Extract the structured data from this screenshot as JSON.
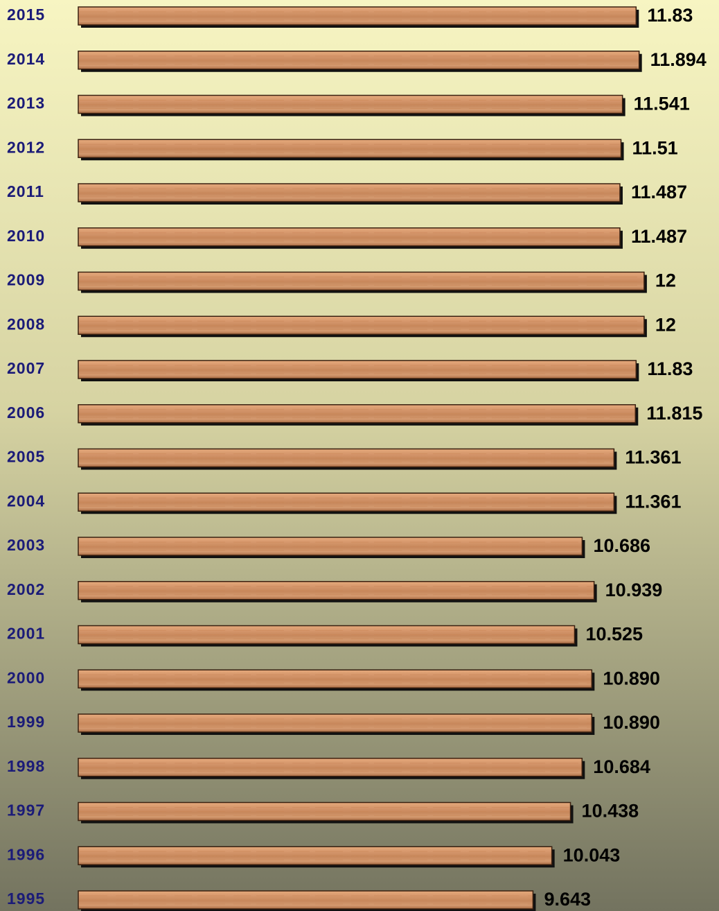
{
  "chart_data": {
    "type": "bar",
    "orientation": "horizontal",
    "categories": [
      "2015",
      "2014",
      "2013",
      "2012",
      "2011",
      "2010",
      "2009",
      "2008",
      "2007",
      "2006",
      "2005",
      "2004",
      "2003",
      "2002",
      "2001",
      "2000",
      "1999",
      "1998",
      "1997",
      "1996",
      "1995"
    ],
    "values": [
      11.83,
      11.894,
      11.541,
      11.51,
      11.487,
      11.487,
      12,
      12,
      11.83,
      11.815,
      11.361,
      11.361,
      10.686,
      10.939,
      10.525,
      10.89,
      10.89,
      10.684,
      10.438,
      10.043,
      9.643
    ],
    "value_labels": [
      "11.83",
      "11.894",
      "11.541",
      "11.51",
      "11.487",
      "11.487",
      "12",
      "12",
      "11.83",
      "11.815",
      "11.361",
      "11.361",
      "10.686",
      "10.939",
      "10.525",
      "10.890",
      "10.890",
      "10.684",
      "10.438",
      "10.043",
      "9.643"
    ],
    "color": "#c98555",
    "xlim": [
      0,
      13.5
    ]
  }
}
